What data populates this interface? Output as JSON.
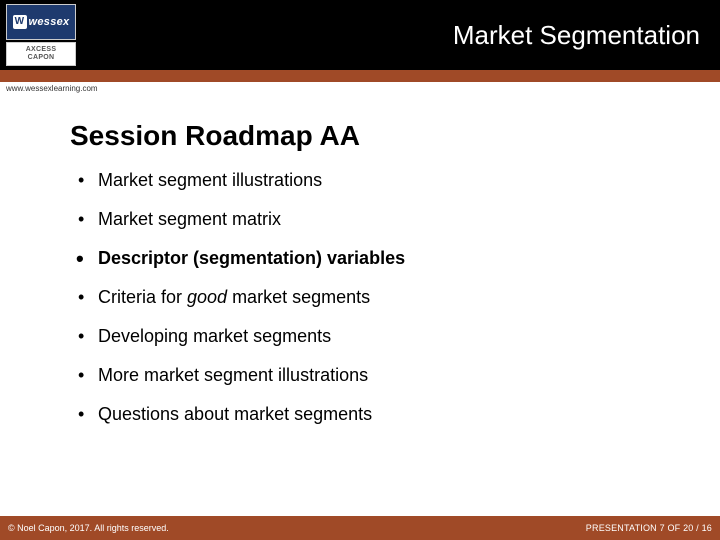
{
  "colors": {
    "accent": "#a04a27",
    "topbar_inner": "#000000",
    "background": "#ffffff",
    "text": "#000000",
    "footer_text": "#ffffff",
    "logo_wessex_bg": "#1e3a6e"
  },
  "header": {
    "title": "Market Segmentation",
    "logos": {
      "wessex": "wessex",
      "axcess_line1": "AXCESS",
      "axcess_line2": "CAPON"
    },
    "url": "www.wessexlearning.com"
  },
  "content": {
    "title": "Session Roadmap AA",
    "bullets": [
      {
        "text": "Market segment illustrations",
        "emphasis": false
      },
      {
        "text": "Market segment matrix",
        "emphasis": false
      },
      {
        "text": "Descriptor (segmentation) variables",
        "emphasis": true
      },
      {
        "text_pre": "Criteria for ",
        "text_good": "good",
        "text_post": " market segments",
        "emphasis": false,
        "has_good": true
      },
      {
        "text": "Developing market segments",
        "emphasis": false
      },
      {
        "text": "More market segment illustrations",
        "emphasis": false
      },
      {
        "text": "Questions about market segments",
        "emphasis": false
      }
    ]
  },
  "footer": {
    "copyright": "© Noel Capon, 2017. All rights reserved.",
    "page_info": "PRESENTATION 7 OF 20 / 16"
  }
}
